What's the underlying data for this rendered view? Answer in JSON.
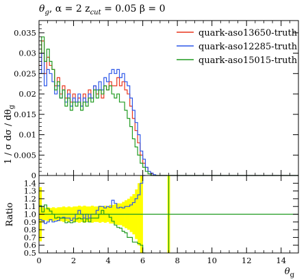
{
  "chart_data": [
    {
      "type": "line",
      "title": "θg, α = 2 zcut = 0.05 β = 0",
      "title_parts": {
        "theta": "θ",
        "theta_sub": "g",
        "alpha": ", α = 2 z",
        "zcut_sub": "cut",
        "rest": " = 0.05 β = 0"
      },
      "ylabel": "1/σ dσ/dθg",
      "ylabel_parts": {
        "main": "1 / σ dσ / dθ",
        "sub": "g"
      },
      "xlim": [
        0,
        15
      ],
      "ylim": [
        0,
        0.038
      ],
      "yticks": [
        "0",
        "0.005",
        "0.01",
        "0.015",
        "0.02",
        "0.025",
        "0.03",
        "0.035"
      ],
      "ytick_values": [
        0,
        0.005,
        0.01,
        0.015,
        0.02,
        0.025,
        0.03,
        0.035
      ],
      "legend_position": "top-right",
      "bin_width": 0.15,
      "series": [
        {
          "name": "quark-aso13650-truth",
          "color": "#e8341c",
          "values": [
            0.027,
            0.033,
            0.025,
            0.029,
            0.027,
            0.026,
            0.022,
            0.024,
            0.02,
            0.022,
            0.019,
            0.021,
            0.018,
            0.02,
            0.018,
            0.019,
            0.017,
            0.02,
            0.018,
            0.021,
            0.019,
            0.022,
            0.02,
            0.021,
            0.019,
            0.022,
            0.021,
            0.023,
            0.022,
            0.022,
            0.024,
            0.022,
            0.023,
            0.021,
            0.02,
            0.017,
            0.014,
            0.011,
            0.008,
            0.005,
            0.003,
            0.002,
            0.001,
            0.0005,
            0,
            0,
            0,
            0,
            0,
            0,
            0,
            0,
            0,
            0,
            0,
            0,
            0,
            0,
            0,
            0,
            0,
            0,
            0,
            0,
            0,
            0,
            0,
            0,
            0,
            0,
            0,
            0,
            0,
            0,
            0,
            0,
            0,
            0,
            0,
            0,
            0,
            0,
            0,
            0,
            0,
            0,
            0,
            0,
            0,
            0,
            0,
            0,
            0,
            0,
            0,
            0,
            0,
            0,
            0,
            0
          ]
        },
        {
          "name": "quark-aso12285-truth",
          "color": "#2a55e8",
          "values": [
            0.025,
            0.03,
            0.022,
            0.026,
            0.025,
            0.023,
            0.02,
            0.022,
            0.019,
            0.021,
            0.018,
            0.02,
            0.017,
            0.019,
            0.018,
            0.02,
            0.017,
            0.019,
            0.018,
            0.02,
            0.019,
            0.022,
            0.021,
            0.023,
            0.021,
            0.024,
            0.023,
            0.025,
            0.026,
            0.025,
            0.026,
            0.024,
            0.025,
            0.023,
            0.022,
            0.019,
            0.016,
            0.013,
            0.01,
            0.006,
            0.004,
            0.002,
            0.001,
            0.0006,
            0.0002,
            0,
            0,
            0,
            0,
            0,
            0,
            0,
            0,
            0,
            0,
            0,
            0,
            0,
            0,
            0,
            0,
            0,
            0,
            0,
            0,
            0,
            0,
            0,
            0,
            0,
            0,
            0,
            0,
            0,
            0,
            0,
            0,
            0,
            0,
            0,
            0,
            0,
            0,
            0,
            0,
            0,
            0,
            0,
            0,
            0,
            0,
            0,
            0,
            0,
            0,
            0,
            0,
            0,
            0,
            0
          ]
        },
        {
          "name": "quark-aso15015-truth",
          "color": "#1f9a1f",
          "values": [
            0.03,
            0.034,
            0.028,
            0.031,
            0.028,
            0.026,
            0.021,
            0.023,
            0.019,
            0.021,
            0.017,
            0.019,
            0.016,
            0.018,
            0.017,
            0.018,
            0.016,
            0.018,
            0.017,
            0.019,
            0.018,
            0.021,
            0.019,
            0.021,
            0.02,
            0.022,
            0.021,
            0.022,
            0.02,
            0.019,
            0.02,
            0.018,
            0.018,
            0.016,
            0.014,
            0.012,
            0.009,
            0.007,
            0.005,
            0.003,
            0.002,
            0.001,
            0.0004,
            0,
            0,
            0,
            0,
            0,
            0,
            0,
            0,
            0,
            0,
            0,
            0,
            0,
            0,
            0,
            0,
            0,
            0,
            0,
            0,
            0,
            0,
            0,
            0,
            0,
            0,
            0,
            0,
            0,
            0,
            0,
            0,
            0,
            0,
            0,
            0,
            0,
            0,
            0,
            0,
            0,
            0,
            0,
            0,
            0,
            0,
            0,
            0,
            0,
            0,
            0,
            0,
            0,
            0,
            0,
            0,
            0
          ]
        }
      ]
    },
    {
      "type": "line",
      "ylabel": "Ratio",
      "xlabel": "θg",
      "xlabel_parts": {
        "main": "θ",
        "sub": "g"
      },
      "xlim": [
        0,
        15
      ],
      "ylim": [
        0.5,
        1.5
      ],
      "xticks": [
        "0",
        "2",
        "4",
        "6",
        "8",
        "10",
        "12",
        "14"
      ],
      "xtick_values": [
        0,
        2,
        4,
        6,
        8,
        10,
        12,
        14
      ],
      "yticks": [
        "0.5",
        "0.6",
        "0.7",
        "0.8",
        "0.9",
        "1.0",
        "1.1",
        "1.2",
        "1.3",
        "1.4"
      ],
      "ytick_values": [
        0.5,
        0.6,
        0.7,
        0.8,
        0.9,
        1.0,
        1.1,
        1.2,
        1.3,
        1.4
      ],
      "band_color": "#ffff00",
      "reference_line": 1.0,
      "band_halfwidth": [
        0.35,
        0.09,
        0.08,
        0.09,
        0.08,
        0.09,
        0.08,
        0.09,
        0.09,
        0.1,
        0.09,
        0.1,
        0.09,
        0.1,
        0.1,
        0.11,
        0.1,
        0.11,
        0.1,
        0.1,
        0.11,
        0.1,
        0.1,
        0.11,
        0.1,
        0.11,
        0.1,
        0.12,
        0.12,
        0.13,
        0.14,
        0.14,
        0.16,
        0.18,
        0.2,
        0.23,
        0.26,
        0.32,
        0.4,
        0.5
      ],
      "band_extra": [
        {
          "x": 7.5,
          "low": 0.5,
          "high": 1.5
        }
      ],
      "series": [
        {
          "name": "quark-aso12285-truth",
          "color": "#2a55e8",
          "values": [
            0.93,
            0.92,
            0.88,
            0.9,
            0.93,
            0.9,
            0.91,
            0.92,
            0.95,
            0.96,
            0.95,
            0.95,
            0.92,
            0.95,
            1.0,
            1.05,
            1.0,
            0.95,
            1.0,
            0.95,
            1.0,
            1.0,
            1.05,
            1.1,
            1.1,
            1.08,
            1.1,
            1.09,
            1.18,
            1.14,
            1.08,
            1.09,
            1.08,
            1.1,
            1.1,
            1.12,
            1.15,
            1.2,
            1.25,
            1.4,
            1.5
          ]
        },
        {
          "name": "quark-aso15015-truth",
          "color": "#1f9a1f",
          "values": [
            1.11,
            1.03,
            1.12,
            1.07,
            1.04,
            1.0,
            0.95,
            0.96,
            0.95,
            0.95,
            0.89,
            0.9,
            0.89,
            0.9,
            0.94,
            0.95,
            0.94,
            0.9,
            0.94,
            0.9,
            0.95,
            0.95,
            0.95,
            1.0,
            1.05,
            1.0,
            1.0,
            0.96,
            0.91,
            0.86,
            0.83,
            0.82,
            0.78,
            0.76,
            0.7,
            0.7,
            0.64,
            0.64,
            0.62,
            0.6,
            0.5
          ]
        }
      ]
    }
  ]
}
